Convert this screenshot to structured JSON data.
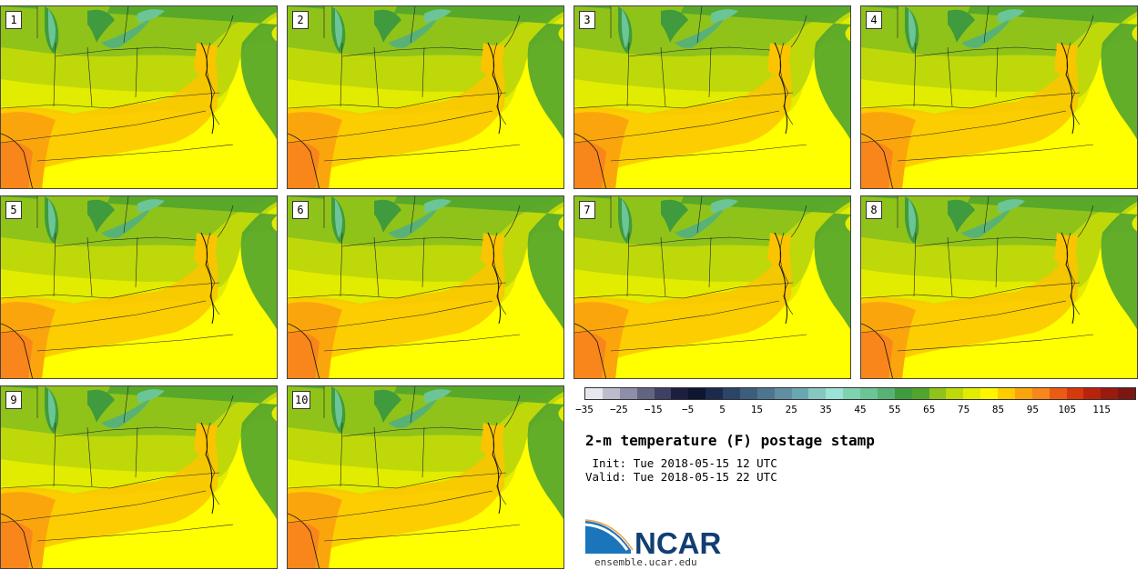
{
  "panels": [
    "1",
    "2",
    "3",
    "4",
    "5",
    "6",
    "7",
    "8",
    "9",
    "10"
  ],
  "colorbar": {
    "colors": [
      "#e7e7ee",
      "#bcbccd",
      "#8e8ea8",
      "#62657f",
      "#3e4163",
      "#1c1f3f",
      "#0d1530",
      "#1b2a4d",
      "#2c4466",
      "#3d5d7e",
      "#4e7590",
      "#5f8fa1",
      "#6aa8b1",
      "#86c7c2",
      "#9ce2d6",
      "#7ed3b0",
      "#6cc597",
      "#58b276",
      "#3f9b3d",
      "#52a52c",
      "#8fc31a",
      "#bfd80a",
      "#e2ec00",
      "#fff700",
      "#ffcc00",
      "#fba50d",
      "#f8861a",
      "#ec5b14",
      "#d63a0c",
      "#b8240b",
      "#9a1b0e",
      "#7c1612"
    ],
    "tick_labels": [
      "−35",
      "−25",
      "−15",
      "−5",
      "5",
      "15",
      "25",
      "35",
      "45",
      "55",
      "65",
      "75",
      "85",
      "95",
      "105",
      "115"
    ]
  },
  "title": "2-m temperature (F) postage stamp",
  "init_label": "Init:",
  "init_value": "Tue 2018-05-15 12 UTC",
  "valid_label": "Valid:",
  "valid_value": "Tue 2018-05-15 22 UTC",
  "logo_text": "NCAR",
  "site": "ensemble.ucar.edu"
}
